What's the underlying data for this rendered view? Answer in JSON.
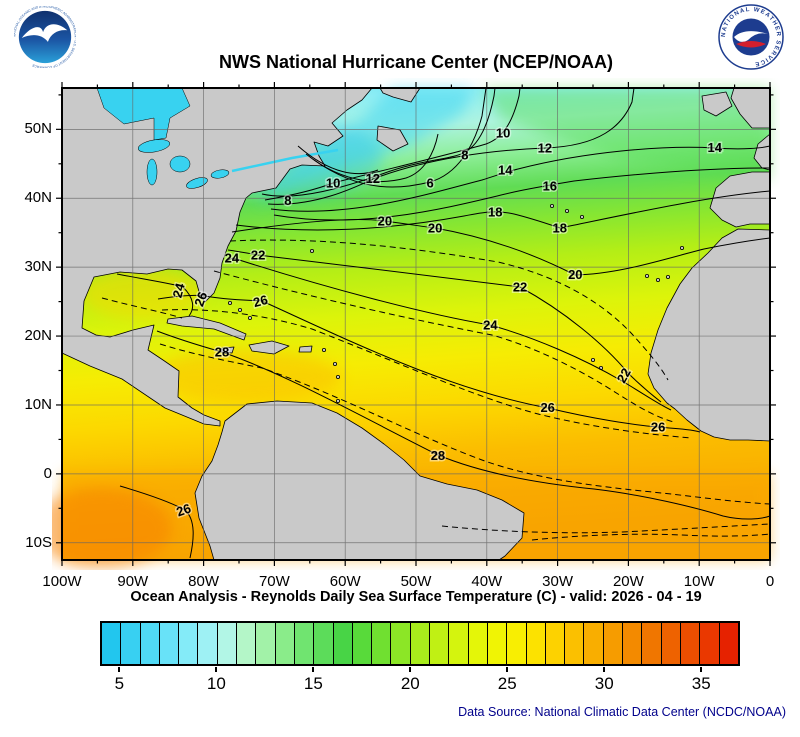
{
  "header": {
    "title": "NWS National Hurricane Center (NCEP/NOAA)",
    "noaa_ring_text": "NATIONAL OCEANIC AND ATMOSPHERIC ADMINISTRATION - U.S. DEPARTMENT OF COMMERCE",
    "nws_logo_text": "NATIONAL WEATHER SERVICE"
  },
  "footer": {
    "text": "Data Source: National Climatic Data Center (NCDC/NOAA)"
  },
  "chart_data": {
    "type": "heatmap",
    "title": "NWS National Hurricane Center (NCEP/NOAA)",
    "caption": "Ocean Analysis - Reynolds Daily Sea Surface Temperature (C) - valid: 2026 - 04 - 19",
    "x_axis": {
      "label_unit": "longitude",
      "range": [
        -100,
        0
      ],
      "ticks": [
        {
          "label": "100W",
          "lon": -100
        },
        {
          "label": "90W",
          "lon": -90
        },
        {
          "label": "80W",
          "lon": -80
        },
        {
          "label": "70W",
          "lon": -70
        },
        {
          "label": "60W",
          "lon": -60
        },
        {
          "label": "50W",
          "lon": -50
        },
        {
          "label": "40W",
          "lon": -40
        },
        {
          "label": "30W",
          "lon": -30
        },
        {
          "label": "20W",
          "lon": -20
        },
        {
          "label": "10W",
          "lon": -10
        },
        {
          "label": "0",
          "lon": 0
        }
      ]
    },
    "y_axis": {
      "label_unit": "latitude",
      "range": [
        -12.5,
        56
      ],
      "ticks": [
        {
          "label": "50N",
          "lat": 50
        },
        {
          "label": "40N",
          "lat": 40
        },
        {
          "label": "30N",
          "lat": 30
        },
        {
          "label": "20N",
          "lat": 20
        },
        {
          "label": "10N",
          "lat": 10
        },
        {
          "label": "0",
          "lat": 0
        },
        {
          "label": "10S",
          "lat": -10
        }
      ]
    },
    "colorbar": {
      "units": "C",
      "min": 4,
      "max": 37,
      "ticks": [
        5,
        10,
        15,
        20,
        25,
        30,
        35
      ],
      "colors": [
        "#22c6ee",
        "#38d0f2",
        "#50daf6",
        "#68e2f8",
        "#84ebf8",
        "#9ef1f4",
        "#b2f6e6",
        "#b4f6c8",
        "#a2f2a8",
        "#8aec8a",
        "#70e470",
        "#5cdc5a",
        "#48d446",
        "#58da3a",
        "#70e030",
        "#8ce626",
        "#a8ec1c",
        "#c0f014",
        "#d4f40e",
        "#e4f608",
        "#f0f404",
        "#f8ee02",
        "#fce200",
        "#fdd200",
        "#fbc000",
        "#f9ae00",
        "#f69c00",
        "#f38a00",
        "#f07600",
        "#ee6200",
        "#ec4e00",
        "#ea3800",
        "#e62200"
      ]
    },
    "contour_levels_solid": [
      6,
      8,
      10,
      12,
      14,
      16,
      18,
      20,
      22,
      24,
      26,
      28
    ],
    "contour_labels": [
      {
        "value": 8,
        "lon": -68.1,
        "lat": 39.7
      },
      {
        "value": 10,
        "lon": -61.7,
        "lat": 42.2
      },
      {
        "value": 12,
        "lon": -56.1,
        "lat": 42.9
      },
      {
        "value": 6,
        "lon": -48.0,
        "lat": 42.2
      },
      {
        "value": 8,
        "lon": -43.1,
        "lat": 46.3
      },
      {
        "value": 10,
        "lon": -37.7,
        "lat": 49.5
      },
      {
        "value": 12,
        "lon": -31.8,
        "lat": 47.3
      },
      {
        "value": 14,
        "lon": -37.4,
        "lat": 44.1
      },
      {
        "value": 14,
        "lon": -7.8,
        "lat": 47.4
      },
      {
        "value": 16,
        "lon": -31.1,
        "lat": 41.8
      },
      {
        "value": 18,
        "lon": -38.8,
        "lat": 38.0
      },
      {
        "value": 18,
        "lon": -29.7,
        "lat": 35.7
      },
      {
        "value": 20,
        "lon": -54.4,
        "lat": 36.7
      },
      {
        "value": 20,
        "lon": -47.3,
        "lat": 35.7
      },
      {
        "value": 20,
        "lon": -27.5,
        "lat": 28.9
      },
      {
        "value": 22,
        "lon": -72.3,
        "lat": 31.8
      },
      {
        "value": 24,
        "lon": -76.0,
        "lat": 31.3
      },
      {
        "value": 22,
        "lon": -35.3,
        "lat": 27.1
      },
      {
        "value": 24,
        "lon": -39.5,
        "lat": 21.6
      },
      {
        "value": 22,
        "lon": -20.1,
        "lat": 14.6,
        "rot": -60
      },
      {
        "value": 26,
        "lon": -31.4,
        "lat": 9.6
      },
      {
        "value": 26,
        "lon": -15.8,
        "lat": 6.8
      },
      {
        "value": 28,
        "lon": -77.4,
        "lat": 17.7
      },
      {
        "value": 28,
        "lon": -46.9,
        "lat": 2.7
      },
      {
        "value": 24,
        "lon": -82.9,
        "lat": 27.1,
        "rot": -75
      },
      {
        "value": 26,
        "lon": -79.8,
        "lat": 25.8,
        "rot": -70
      },
      {
        "value": 26,
        "lon": -71.8,
        "lat": 25.1,
        "rot": -15
      },
      {
        "value": 26,
        "lon": -82.6,
        "lat": -5.2,
        "rot": -20
      }
    ],
    "colors": {
      "land": "#c9c9c9",
      "lakes": "#38d2f0",
      "grid": "#666666",
      "sea_cold": "#66e0f2",
      "sea_warm": "#f8a400"
    }
  }
}
